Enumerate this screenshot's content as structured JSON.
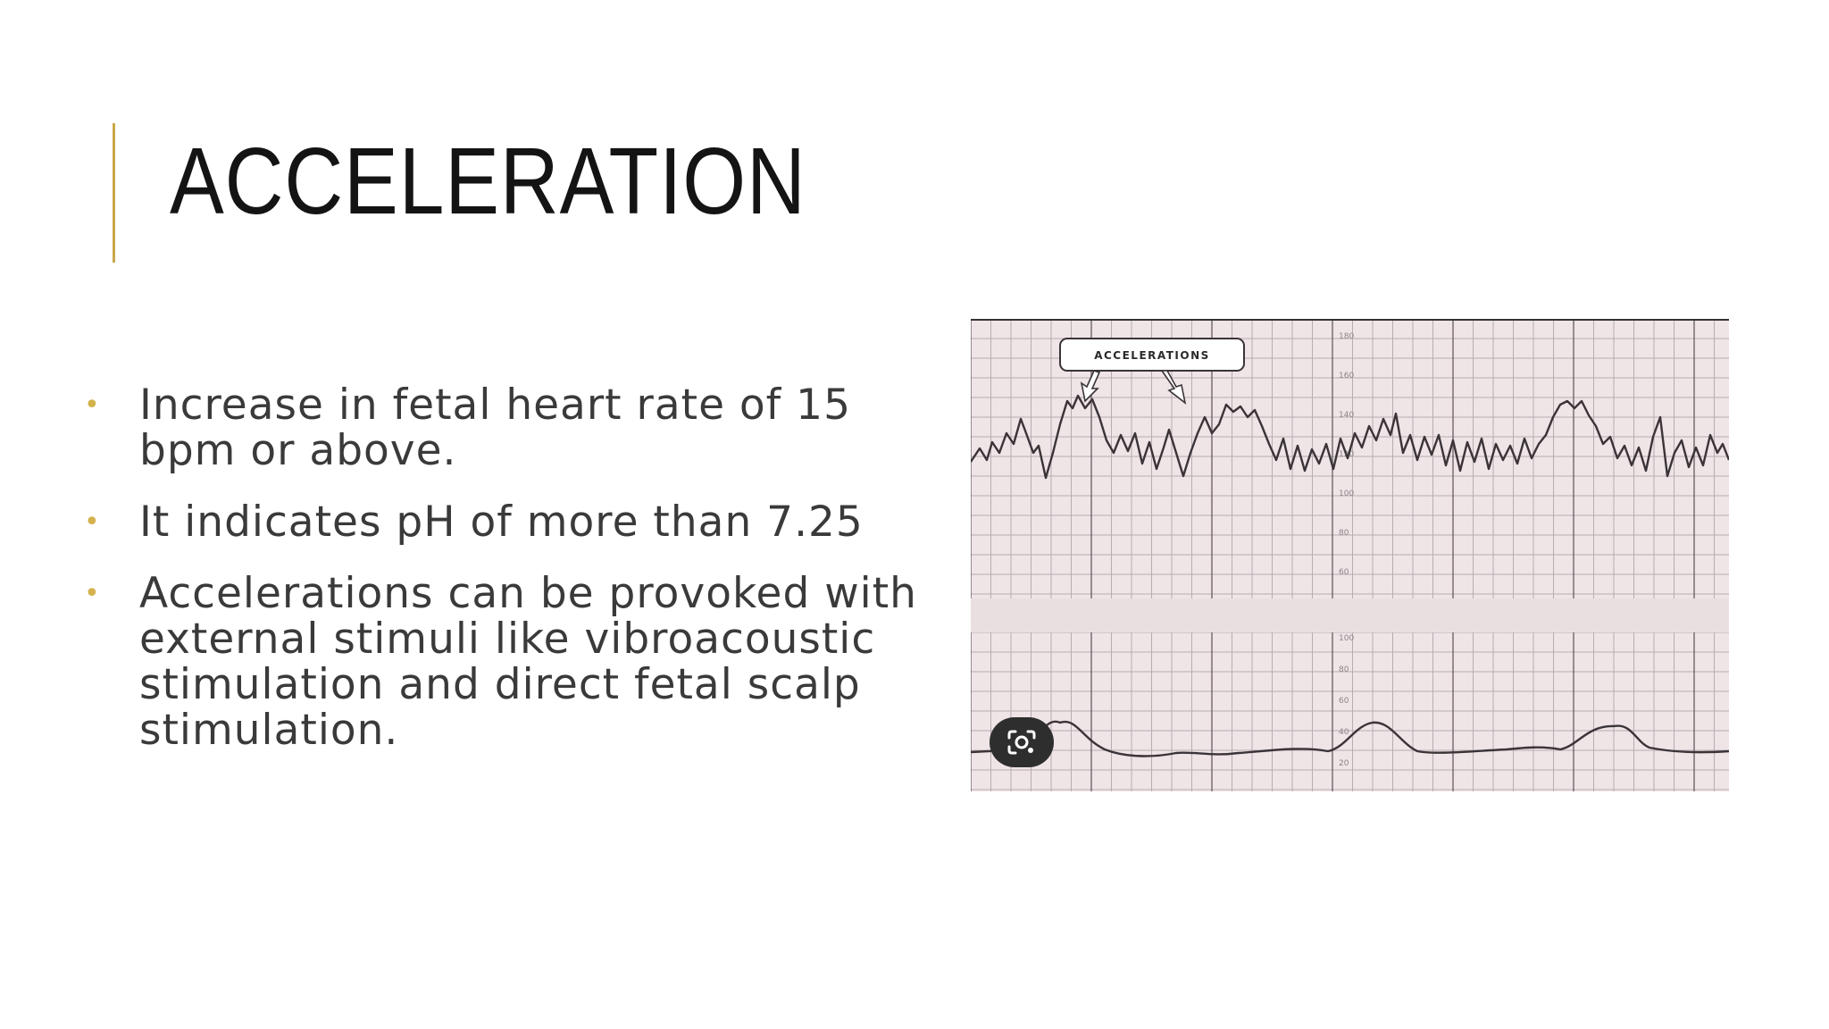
{
  "slide": {
    "title": "ACCELERATION",
    "bullets": [
      "Increase in fetal heart rate of 15 bpm or above.",
      "It indicates pH of more than 7.25",
      "Accelerations can be provoked with external stimuli like vibroacoustic stimulation and direct fetal scalp stimulation."
    ]
  },
  "figure": {
    "callout_label": "ACCELERATIONS",
    "scale_labels": [
      "180",
      "160",
      "140",
      "120",
      "100",
      "80",
      "60",
      "100",
      "80",
      "60",
      "40",
      "20"
    ]
  },
  "colors": {
    "accent": "#c9a74a",
    "bullet": "#d4b24c",
    "title": "#141414",
    "body": "#3a3a3a",
    "paper": "#efe4e6",
    "grid": "#6e6468"
  },
  "icons": {
    "bullet": "bullet-dot-icon",
    "lens": "visual-search-icon"
  }
}
